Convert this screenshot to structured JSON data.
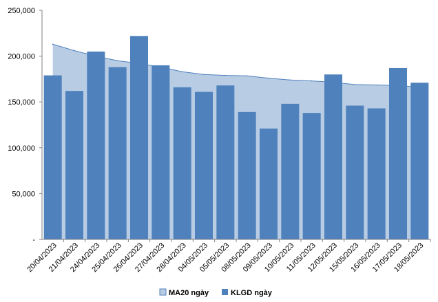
{
  "chart_data": {
    "type": "bar",
    "categories": [
      "20/04/2023",
      "21/04/2023",
      "24/04/2023",
      "25/04/2023",
      "26/04/2023",
      "27/04/2023",
      "28/04/2023",
      "04/05/2023",
      "05/05/2023",
      "08/05/2023",
      "09/05/2023",
      "10/05/2023",
      "11/05/2023",
      "12/05/2023",
      "15/05/2023",
      "16/05/2023",
      "17/05/2023",
      "18/05/2023"
    ],
    "series": [
      {
        "name": "MA20 ngày",
        "type": "area",
        "color": "#b8cce4",
        "line_color": "#4f81bd",
        "values": [
          213000,
          206000,
          200000,
          195000,
          192000,
          188000,
          183000,
          180000,
          179000,
          178500,
          176000,
          174000,
          173000,
          171500,
          169000,
          168500,
          168000,
          166000
        ]
      },
      {
        "name": "KLGD ngày",
        "type": "bar",
        "color": "#4f81bd",
        "values": [
          179000,
          162000,
          205000,
          188000,
          222000,
          190000,
          166000,
          161000,
          168000,
          139000,
          121000,
          148000,
          138000,
          180000,
          146000,
          143000,
          187000,
          171000
        ]
      }
    ],
    "y_ticks": [
      "-",
      "50,000",
      "100,000",
      "150,000",
      "200,000",
      "250,000"
    ],
    "y_tick_values": [
      0,
      50000,
      100000,
      150000,
      200000,
      250000
    ],
    "ylim": [
      0,
      250000
    ],
    "grid": false,
    "legend_position": "bottom"
  }
}
